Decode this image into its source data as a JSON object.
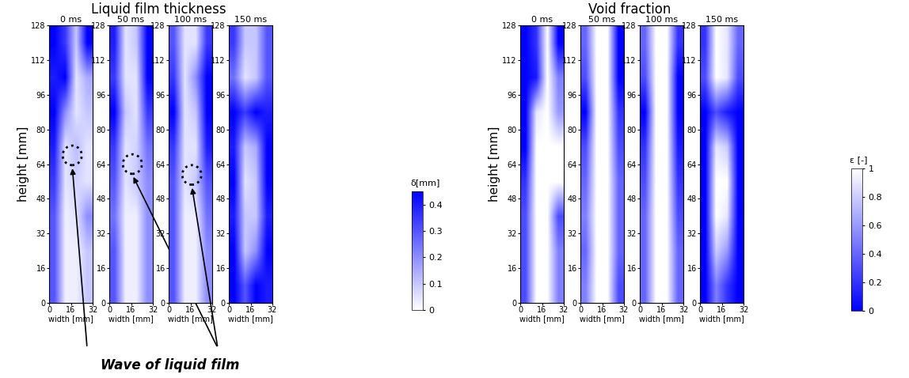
{
  "chart_data": {
    "type": "heatmap",
    "xlabel": "width [mm]",
    "ylabel": "height [mm]",
    "xlim": [
      0,
      32
    ],
    "ylim": [
      0,
      128
    ],
    "xticks": [
      0,
      16,
      32
    ],
    "yticks": [
      0,
      16,
      32,
      48,
      64,
      80,
      96,
      112,
      128
    ],
    "annotation": "Wave of liquid film",
    "groups": [
      {
        "title": "Liquid film thickness",
        "colorbar_label": "δ[mm]",
        "colorbar_range": [
          0,
          0.45
        ],
        "colorbar_ticks": [
          0,
          0.1,
          0.2,
          0.3,
          0.4
        ],
        "colors": [
          "#ffffff",
          "#0000ff"
        ],
        "panels": [
          {
            "title": "0 ms",
            "wave": [
              17,
              68
            ],
            "cells": [
              [
                0.3,
                0.03,
                0.03,
                0.1
              ],
              [
                0.3,
                0.03,
                0.03,
                0.1
              ],
              [
                0.3,
                0.03,
                0.05,
                0.2
              ],
              [
                0.35,
                0.05,
                0.08,
                0.05
              ],
              [
                0.4,
                0.05,
                0.12,
                0.05
              ],
              [
                0.45,
                0.2,
                0.05,
                0.1
              ],
              [
                0.4,
                0.45,
                0.05,
                0.15
              ],
              [
                0.45,
                0.35,
                0.1,
                0.45
              ]
            ]
          },
          {
            "title": "50 ms",
            "wave": [
              17,
              64
            ],
            "cells": [
              [
                0.3,
                0.03,
                0.03,
                0.2
              ],
              [
                0.3,
                0.03,
                0.03,
                0.2
              ],
              [
                0.25,
                0.03,
                0.03,
                0.2
              ],
              [
                0.3,
                0.05,
                0.1,
                0.2
              ],
              [
                0.35,
                0.05,
                0.08,
                0.25
              ],
              [
                0.45,
                0.1,
                0.05,
                0.35
              ],
              [
                0.35,
                0.05,
                0.05,
                0.45
              ],
              [
                0.4,
                0.05,
                0.1,
                0.45
              ]
            ]
          },
          {
            "title": "100 ms",
            "wave": [
              17,
              59
            ],
            "cells": [
              [
                0.3,
                0.03,
                0.03,
                0.2
              ],
              [
                0.3,
                0.03,
                0.03,
                0.2
              ],
              [
                0.3,
                0.03,
                0.03,
                0.25
              ],
              [
                0.3,
                0.05,
                0.1,
                0.3
              ],
              [
                0.35,
                0.05,
                0.05,
                0.4
              ],
              [
                0.45,
                0.05,
                0.1,
                0.45
              ],
              [
                0.35,
                0.05,
                0.2,
                0.45
              ],
              [
                0.3,
                0.05,
                0.05,
                0.35
              ]
            ]
          },
          {
            "title": "150 ms",
            "cells": [
              [
                0.45,
                0.3,
                0.45,
                0.4
              ],
              [
                0.45,
                0.1,
                0.2,
                0.45
              ],
              [
                0.4,
                0.1,
                0.1,
                0.4
              ],
              [
                0.45,
                0.05,
                0.1,
                0.45
              ],
              [
                0.4,
                0.1,
                0.15,
                0.45
              ],
              [
                0.45,
                0.35,
                0.45,
                0.4
              ],
              [
                0.25,
                0.05,
                0.1,
                0.3
              ],
              [
                0.35,
                0.1,
                0.1,
                0.3
              ]
            ]
          }
        ]
      },
      {
        "title": "Void fraction",
        "colorbar_label": "ε [-]",
        "colorbar_range": [
          0,
          1
        ],
        "colorbar_ticks": [
          0,
          0.2,
          0.4,
          0.6,
          0.8,
          1
        ],
        "colors": [
          "#0000ff",
          "#ffffff"
        ],
        "panels": [
          {
            "title": "0 ms",
            "cells": [
              [
                0.3,
                1,
                1,
                0.5
              ],
              [
                0.3,
                1,
                1,
                0.5
              ],
              [
                0.3,
                1,
                1,
                0.3
              ],
              [
                0.2,
                1,
                1,
                1
              ],
              [
                0,
                1,
                1,
                1
              ],
              [
                0,
                0.9,
                1,
                0.6
              ],
              [
                0,
                0.1,
                1,
                0.5
              ],
              [
                0,
                0.2,
                1,
                0
              ]
            ]
          },
          {
            "title": "50 ms",
            "cells": [
              [
                0.5,
                1,
                1,
                0.3
              ],
              [
                0.4,
                1,
                1,
                0.4
              ],
              [
                0.5,
                1,
                1,
                0.4
              ],
              [
                0.4,
                1,
                1,
                0.4
              ],
              [
                0.3,
                1,
                1,
                0.3
              ],
              [
                0,
                1,
                1,
                0.2
              ],
              [
                0.3,
                1,
                1,
                0
              ],
              [
                0.4,
                1,
                1,
                0
              ]
            ]
          },
          {
            "title": "100 ms",
            "cells": [
              [
                0.4,
                1,
                1,
                0.4
              ],
              [
                0.4,
                1,
                1,
                0.4
              ],
              [
                0.4,
                1,
                1,
                0.3
              ],
              [
                0.3,
                1,
                1,
                0.2
              ],
              [
                0.2,
                1,
                1,
                0.1
              ],
              [
                0,
                1,
                1,
                0
              ],
              [
                0.3,
                1,
                1,
                0
              ],
              [
                0.4,
                1,
                1,
                0.2
              ]
            ]
          },
          {
            "title": "150 ms",
            "cells": [
              [
                0,
                0.5,
                0.2,
                0
              ],
              [
                0,
                0.8,
                0.6,
                0
              ],
              [
                0,
                1,
                0.9,
                0
              ],
              [
                0,
                1,
                1,
                0
              ],
              [
                0,
                0.9,
                0.8,
                0
              ],
              [
                0,
                0.3,
                0.1,
                0
              ],
              [
                0.3,
                1,
                0.9,
                0.3
              ],
              [
                0.2,
                1,
                0.9,
                0.4
              ]
            ]
          }
        ]
      }
    ]
  }
}
